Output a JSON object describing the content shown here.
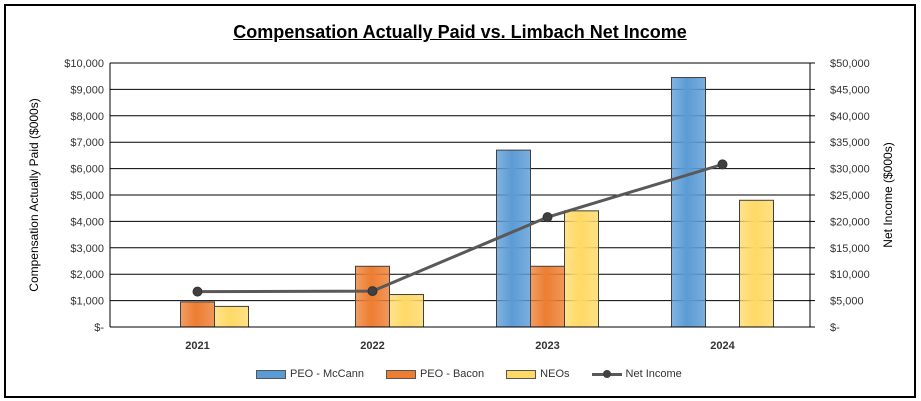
{
  "chart_data": {
    "type": "bar",
    "title": "Compensation Actually Paid vs. Limbach Net Income",
    "categories": [
      "2021",
      "2022",
      "2023",
      "2024"
    ],
    "series": [
      {
        "name": "PEO - McCann",
        "values": [
          null,
          null,
          6700,
          9450
        ],
        "color": "#5b9bd5"
      },
      {
        "name": "PEO - Bacon",
        "values": [
          950,
          2300,
          2300,
          null
        ],
        "color": "#ed7d31"
      },
      {
        "name": "NEOs",
        "values": [
          780,
          1230,
          4400,
          4800
        ],
        "color": "#ffd966"
      }
    ],
    "line_series": {
      "name": "Net Income",
      "values": [
        6700,
        6800,
        20800,
        30800
      ],
      "color": "#595959",
      "axis": "right"
    },
    "ylabel": "Compensation Actually Paid ($000s)",
    "y2label": "Net Income ($000s)",
    "ylim": [
      0,
      10000
    ],
    "y2lim": [
      0,
      50000
    ],
    "yticks": [
      "$-",
      "$1,000",
      "$2,000",
      "$3,000",
      "$4,000",
      "$5,000",
      "$6,000",
      "$7,000",
      "$8,000",
      "$9,000",
      "$10,000"
    ],
    "y2ticks": [
      "$-",
      "$5,000",
      "$10,000",
      "$15,000",
      "$20,000",
      "$25,000",
      "$30,000",
      "$35,000",
      "$40,000",
      "$45,000",
      "$50,000"
    ],
    "grid": true,
    "legend": "bottom"
  }
}
